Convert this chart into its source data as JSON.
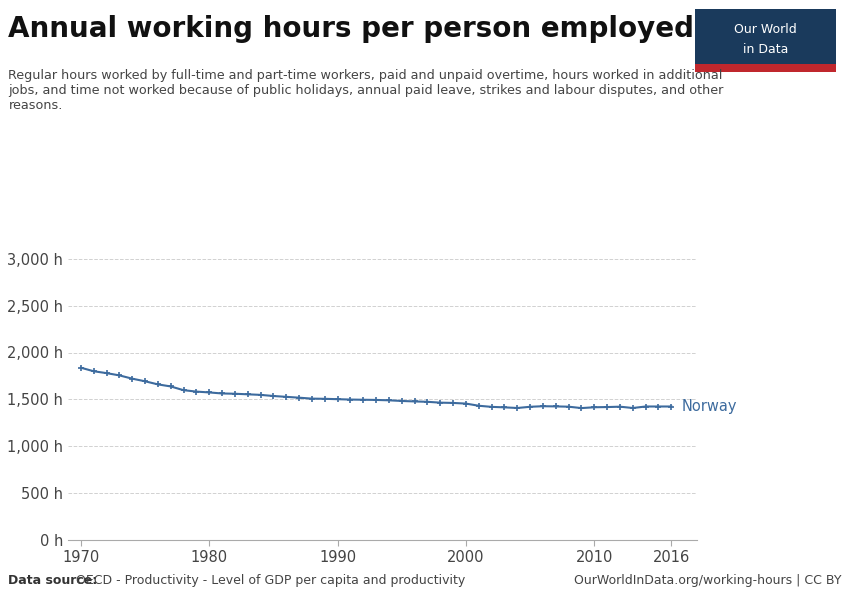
{
  "title": "Annual working hours per person employed",
  "subtitle": "Regular hours worked by full-time and part-time workers, paid and unpaid overtime, hours worked in additional\njobs, and time not worked because of public holidays, annual paid leave, strikes and labour disputes, and other\nreasons.",
  "datasource_bold": "Data source:",
  "datasource_rest": " OECD - Productivity - Level of GDP per capita and productivity",
  "copyright": "OurWorldInData.org/working-hours | CC BY",
  "line_color": "#3d6b9e",
  "background_color": "#ffffff",
  "label": "Norway",
  "years": [
    1970,
    1971,
    1972,
    1973,
    1974,
    1975,
    1976,
    1977,
    1978,
    1979,
    1980,
    1981,
    1982,
    1983,
    1984,
    1985,
    1986,
    1987,
    1988,
    1989,
    1990,
    1991,
    1992,
    1993,
    1994,
    1995,
    1996,
    1997,
    1998,
    1999,
    2000,
    2001,
    2002,
    2003,
    2004,
    2005,
    2006,
    2007,
    2008,
    2009,
    2010,
    2011,
    2012,
    2013,
    2014,
    2015,
    2016
  ],
  "values": [
    1838,
    1800,
    1780,
    1756,
    1721,
    1693,
    1660,
    1638,
    1598,
    1583,
    1574,
    1563,
    1560,
    1554,
    1548,
    1536,
    1527,
    1518,
    1508,
    1506,
    1502,
    1498,
    1496,
    1494,
    1490,
    1483,
    1478,
    1474,
    1465,
    1462,
    1455,
    1432,
    1420,
    1415,
    1408,
    1421,
    1427,
    1425,
    1422,
    1407,
    1416,
    1418,
    1422,
    1408,
    1424,
    1424,
    1424
  ],
  "yticks": [
    0,
    500,
    1000,
    1500,
    2000,
    2500,
    3000
  ],
  "ytick_labels": [
    "0 h",
    "500 h",
    "1,000 h",
    "1,500 h",
    "2,000 h",
    "2,500 h",
    "3,000 h"
  ],
  "xticks": [
    1970,
    1980,
    1990,
    2000,
    2010,
    2016
  ],
  "ylim": [
    0,
    3200
  ],
  "xlim": [
    1969,
    2018
  ],
  "box_bg": "#1a3a5c",
  "box_red": "#c0272d"
}
